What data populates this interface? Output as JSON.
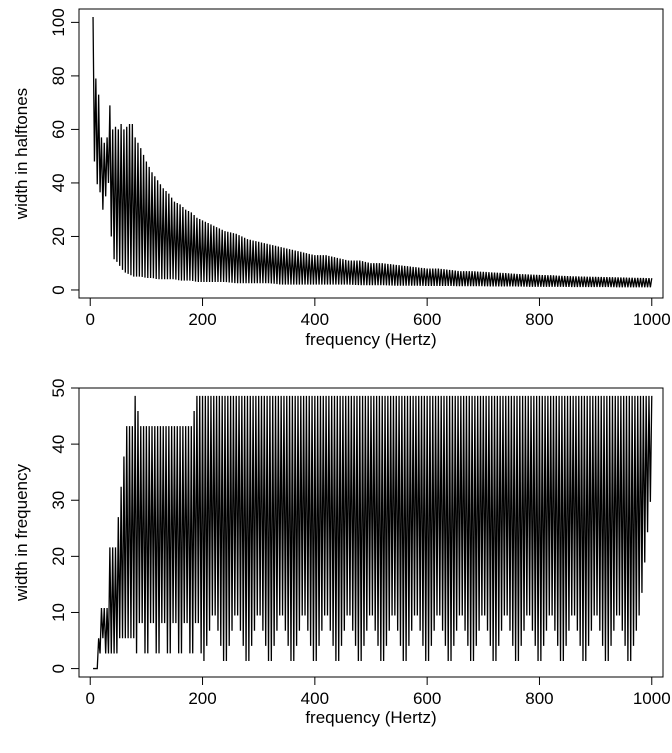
{
  "chart_data": [
    {
      "type": "line",
      "xlabel": "frequency (Hertz)",
      "ylabel": "width in halftones",
      "xlim": [
        -20,
        1020
      ],
      "ylim": [
        -3,
        105
      ],
      "xticks": [
        0,
        200,
        400,
        600,
        800,
        1000
      ],
      "xtick_labels": [
        "0",
        "200",
        "400",
        "600",
        "800",
        "1000"
      ],
      "yticks": [
        0,
        20,
        40,
        60,
        80,
        100
      ],
      "ytick_labels": [
        "0",
        "20",
        "40",
        "60",
        "80",
        "100"
      ],
      "grid": false,
      "legend": "none",
      "series_color": "#000000",
      "series": [
        {
          "x": [
            5,
            10,
            15,
            20,
            25,
            30,
            35,
            40,
            45,
            50,
            55,
            60,
            65,
            70,
            75,
            80,
            90,
            100,
            110,
            120,
            130,
            140,
            150,
            160,
            170,
            180,
            190,
            200,
            220,
            240,
            260,
            280,
            300,
            320,
            340,
            360,
            380,
            400,
            420,
            440,
            460,
            480,
            500,
            520,
            540,
            560,
            580,
            600,
            620,
            640,
            660,
            680,
            700,
            720,
            740,
            760,
            780,
            800,
            820,
            840,
            860,
            880,
            900,
            920,
            940,
            960,
            980,
            1000
          ],
          "y_high": [
            102,
            79,
            73,
            57,
            55,
            57,
            69,
            60,
            61,
            60,
            62,
            60,
            61,
            62,
            62,
            57,
            53,
            48,
            44,
            41,
            38,
            36,
            33,
            32,
            30,
            29,
            27,
            26,
            24,
            22,
            21,
            19,
            18,
            17,
            16,
            15,
            14,
            13,
            13,
            12,
            11,
            11,
            10,
            10,
            9.5,
            9,
            8.5,
            8,
            8,
            7.5,
            7,
            7,
            6.8,
            6.5,
            6.3,
            6,
            5.8,
            5.6,
            5.5,
            5.3,
            5.1,
            5,
            4.9,
            4.8,
            4.7,
            4.6,
            4.5,
            4.4
          ],
          "y_low": [
            48,
            48,
            31,
            42,
            18,
            52,
            28,
            12,
            11,
            10,
            8,
            7,
            6,
            6,
            5,
            5,
            5,
            4.5,
            4.5,
            4,
            4,
            4,
            4,
            3.5,
            3.5,
            3.5,
            3,
            3,
            3,
            3,
            2.5,
            2.5,
            2.5,
            2.5,
            2,
            2,
            2,
            2,
            2,
            2,
            2,
            1.8,
            1.8,
            1.8,
            1.6,
            1.6,
            1.6,
            1.5,
            1.5,
            1.5,
            1.4,
            1.4,
            1.4,
            1.3,
            1.3,
            1.3,
            1.2,
            1.2,
            1.2,
            1.2,
            1.1,
            1.1,
            1.1,
            1.1,
            1,
            1,
            1,
            1
          ]
        }
      ]
    },
    {
      "type": "line",
      "xlabel": "frequency (Hertz)",
      "ylabel": "width in frequency",
      "xlim": [
        -20,
        1020
      ],
      "ylim": [
        -1.5,
        50
      ],
      "xticks": [
        0,
        200,
        400,
        600,
        800,
        1000
      ],
      "xtick_labels": [
        "0",
        "200",
        "400",
        "600",
        "800",
        "1000"
      ],
      "yticks": [
        0,
        10,
        20,
        30,
        40,
        50
      ],
      "ytick_labels": [
        "0",
        "10",
        "20",
        "30",
        "40",
        "50"
      ],
      "grid": false,
      "legend": "none",
      "series_color": "#000000",
      "series": [
        {
          "x": [
            5,
            10,
            15,
            20,
            25,
            30,
            35,
            40,
            45,
            50,
            55,
            60,
            65,
            70,
            75,
            80,
            90,
            100,
            110,
            120,
            130,
            140,
            150,
            160,
            170,
            180,
            190,
            200,
            220,
            240,
            260,
            280,
            300,
            320,
            340,
            360,
            380,
            400,
            420,
            440,
            460,
            480,
            500,
            520,
            540,
            560,
            580,
            600,
            620,
            640,
            660,
            680,
            700,
            720,
            740,
            760,
            780,
            800,
            820,
            840,
            860,
            880,
            900,
            920,
            940,
            960,
            980,
            1000
          ],
          "y_high": [
            0,
            0,
            5.4,
            10.8,
            10.8,
            10.8,
            21.6,
            21.6,
            21.6,
            27,
            32.4,
            37.8,
            43.2,
            43.2,
            43.2,
            48.6,
            43.2,
            43.2,
            43.2,
            43.2,
            43.2,
            43.2,
            43.2,
            43.2,
            43.2,
            43.2,
            48.6,
            48.6,
            48.6,
            48.6,
            48.6,
            48.6,
            48.6,
            48.6,
            48.6,
            48.6,
            48.6,
            48.6,
            48.6,
            48.6,
            48.6,
            48.6,
            48.6,
            48.6,
            48.6,
            48.6,
            48.6,
            48.6,
            48.6,
            48.6,
            48.6,
            48.6,
            48.6,
            48.6,
            48.6,
            48.6,
            48.6,
            48.6,
            48.6,
            48.6,
            48.6,
            48.6,
            48.6,
            48.6,
            48.6,
            48.6,
            48.6,
            48.6
          ],
          "y_low": [
            0,
            0,
            0,
            5.4,
            5.4,
            0,
            5.4,
            0,
            5.4,
            0,
            10.8,
            0,
            10.8,
            0,
            10.8,
            0,
            10.8,
            0,
            10.8,
            0,
            10.8,
            0,
            10.8,
            0,
            10.8,
            0,
            10.8,
            0,
            10.8,
            0,
            10.8,
            0,
            10.8,
            0,
            10.8,
            0,
            10.8,
            0,
            10.8,
            0,
            10.8,
            0,
            10.8,
            0,
            10.8,
            0,
            10.8,
            0,
            10.8,
            0,
            10.8,
            0,
            10.8,
            0,
            10.8,
            0,
            10.8,
            0,
            10.8,
            0,
            10.8,
            0,
            10.8,
            0,
            10.8,
            0,
            10.8,
            32.4
          ]
        }
      ]
    }
  ]
}
